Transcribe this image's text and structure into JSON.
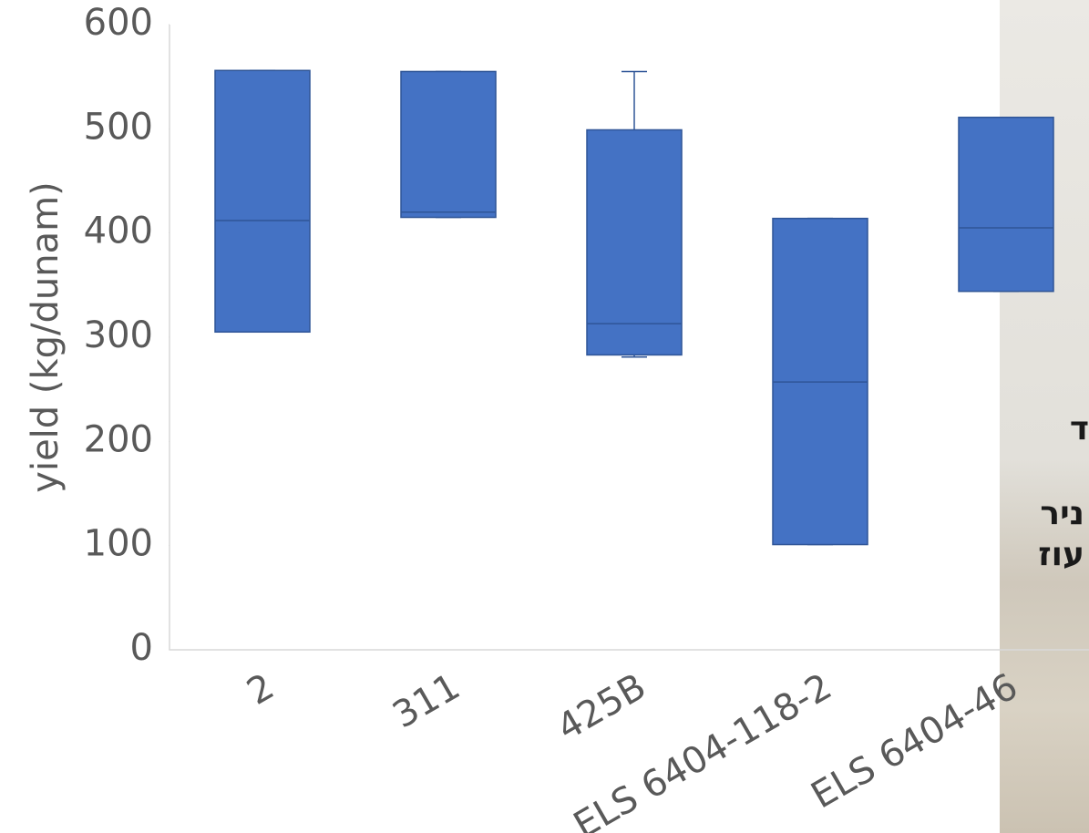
{
  "chart_data": {
    "type": "box",
    "y_label": "yield (kg/dunam)",
    "categories": [
      "2",
      "311",
      "425B",
      "ELS 6404-118-2",
      "ELS 6404-46"
    ],
    "series": [
      {
        "color": "#4472c4",
        "min": [
          305,
          415,
          281,
          101,
          344
        ],
        "q1": [
          305,
          415,
          283,
          101,
          344
        ],
        "median": [
          412,
          420,
          313,
          257,
          405
        ],
        "q3": [
          556,
          555,
          499,
          414,
          511
        ],
        "max": [
          556,
          555,
          555,
          414,
          511
        ]
      }
    ],
    "ylim": [
      0,
      600
    ],
    "yticks": [
      0,
      100,
      200,
      300,
      400,
      500,
      600
    ]
  },
  "overlay": {
    "texts": [
      "ד",
      "ניר",
      "עוז"
    ]
  }
}
